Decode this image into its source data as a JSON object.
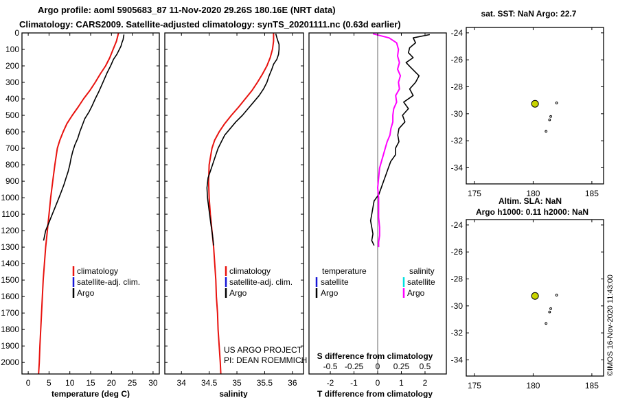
{
  "titles": {
    "line1": "Argo profile: aoml 5905683_87 11-Nov-2020 29.26S 180.16E (NRT data)",
    "line2": "Climatology: CARS2009. Satellite-adjusted climatology: synTS_20201111.nc (0.63d earlier)"
  },
  "credit": "©IMOS 16-Nov-2020 11:43:00",
  "project_note": [
    "US ARGO PROJECT",
    "PI: DEAN ROEMMICH"
  ],
  "colors": {
    "climatology": "#e8120e",
    "satellite_adj_clim": "#1515d6",
    "argo": "#000000",
    "satellite_diff": "#00e0e0",
    "argo_salinity_diff": "#ff00ff",
    "argo_marker": "#c8d400"
  },
  "legends": {
    "temperature": [
      {
        "label": "climatology",
        "color": "#e8120e"
      },
      {
        "label": "satellite-adj. clim.",
        "color": "#1515d6"
      },
      {
        "label": "Argo",
        "color": "#000000"
      }
    ],
    "salinity": [
      {
        "label": "climatology",
        "color": "#e8120e"
      },
      {
        "label": "satellite-adj. clim.",
        "color": "#1515d6"
      },
      {
        "label": "Argo",
        "color": "#000000"
      }
    ],
    "difference": {
      "temperature_header": "temperature",
      "salinity_header": "salinity",
      "temperature_items": [
        {
          "label": "satellite",
          "color": "#1515d6"
        },
        {
          "label": "Argo",
          "color": "#000000"
        }
      ],
      "salinity_items": [
        {
          "label": "satellite",
          "color": "#00e0e0"
        },
        {
          "label": "Argo",
          "color": "#ff00ff"
        }
      ]
    }
  },
  "chart_data": [
    {
      "id": "temperature",
      "type": "line",
      "xlabel": "temperature (deg C)",
      "ylabel": "",
      "xlim": [
        -1.5,
        31.5
      ],
      "ylim": [
        2070,
        0
      ],
      "xticks": [
        0,
        5,
        10,
        15,
        20,
        25,
        30
      ],
      "xtick_labels": [
        "0",
        "5",
        "10",
        "15",
        "20",
        "25",
        "30"
      ],
      "yticks": [
        0,
        100,
        200,
        300,
        400,
        500,
        600,
        700,
        800,
        900,
        1000,
        1100,
        1200,
        1300,
        1400,
        1500,
        1600,
        1700,
        1800,
        1900,
        2000
      ],
      "ytick_labels": [
        "0",
        "100",
        "200",
        "300",
        "400",
        "500",
        "600",
        "700",
        "800",
        "900",
        "1000",
        "1100",
        "1200",
        "1300",
        "1400",
        "1500",
        "1600",
        "1700",
        "1800",
        "1900",
        "2000"
      ],
      "series": [
        {
          "name": "climatology",
          "color": "#e8120e",
          "x": [
            21.7,
            21.2,
            20.4,
            19.6,
            18.6,
            17.3,
            16.1,
            14.8,
            13.3,
            12.0,
            10.6,
            9.3,
            8.4,
            7.6,
            7.0,
            6.4,
            5.9,
            5.4,
            5.0,
            4.6,
            4.2,
            3.9,
            3.6,
            3.4,
            3.2,
            3.0,
            2.8,
            2.65,
            2.5
          ],
          "y": [
            0,
            50,
            100,
            150,
            200,
            250,
            300,
            350,
            400,
            450,
            500,
            550,
            600,
            650,
            700,
            800,
            900,
            1000,
            1100,
            1200,
            1300,
            1400,
            1500,
            1600,
            1700,
            1800,
            1900,
            2000,
            2070
          ]
        },
        {
          "name": "Argo",
          "color": "#000000",
          "x": [
            23.0,
            22.8,
            22.5,
            22.3,
            21.9,
            21.3,
            20.5,
            19.8,
            19.0,
            18.3,
            17.6,
            16.9,
            16.1,
            15.4,
            14.6,
            13.6,
            13.0,
            12.4,
            11.9,
            11.2,
            10.7,
            10.3,
            10.0,
            9.6,
            9.1,
            8.6,
            8.0,
            7.4,
            6.6,
            5.8,
            5.0,
            4.2,
            3.7
          ],
          "y": [
            10,
            40,
            60,
            80,
            100,
            130,
            160,
            200,
            240,
            280,
            320,
            360,
            400,
            440,
            480,
            520,
            560,
            600,
            640,
            680,
            720,
            760,
            800,
            840,
            880,
            920,
            960,
            1000,
            1050,
            1100,
            1150,
            1200,
            1260
          ]
        }
      ]
    },
    {
      "id": "salinity",
      "type": "line",
      "xlabel": "salinity",
      "ylabel": "",
      "xlim": [
        33.7,
        36.2
      ],
      "ylim": [
        2070,
        0
      ],
      "xticks": [
        34,
        34.5,
        35,
        35.5,
        36
      ],
      "xtick_labels": [
        "34",
        "34.5",
        "35",
        "35.5",
        "36"
      ],
      "series": [
        {
          "name": "climatology",
          "color": "#e8120e",
          "x": [
            35.66,
            35.66,
            35.64,
            35.6,
            35.54,
            35.46,
            35.37,
            35.27,
            35.15,
            35.03,
            34.9,
            34.78,
            34.68,
            34.6,
            34.55,
            34.5,
            34.49,
            34.5,
            34.52,
            34.55,
            34.58,
            34.6,
            34.62,
            34.63,
            34.65,
            34.66,
            34.68,
            34.7,
            34.71
          ],
          "y": [
            0,
            50,
            100,
            150,
            200,
            250,
            300,
            350,
            400,
            450,
            500,
            550,
            600,
            650,
            700,
            800,
            900,
            1000,
            1100,
            1200,
            1300,
            1400,
            1500,
            1600,
            1700,
            1800,
            1900,
            2000,
            2070
          ]
        },
        {
          "name": "Argo",
          "color": "#000000",
          "x": [
            35.7,
            35.73,
            35.76,
            35.76,
            35.75,
            35.72,
            35.66,
            35.63,
            35.58,
            35.54,
            35.48,
            35.4,
            35.3,
            35.2,
            35.1,
            34.98,
            34.88,
            34.78,
            34.72,
            34.66,
            34.6,
            34.54,
            34.48,
            34.46,
            34.47,
            34.5,
            34.53,
            34.56,
            34.58
          ],
          "y": [
            5,
            40,
            70,
            100,
            130,
            160,
            190,
            220,
            260,
            300,
            340,
            380,
            420,
            460,
            500,
            540,
            580,
            620,
            660,
            700,
            760,
            820,
            880,
            940,
            1000,
            1080,
            1160,
            1230,
            1290
          ]
        }
      ]
    },
    {
      "id": "difference",
      "type": "line",
      "xlabel": "T difference from climatology",
      "top_label": "S difference from climatology",
      "xlim": [
        -2.9,
        2.9
      ],
      "ylim": [
        2070,
        0
      ],
      "xticks": [
        -2,
        -1,
        0,
        1,
        2
      ],
      "xtick_labels": [
        "-2",
        "-1",
        "0",
        "1",
        "2"
      ],
      "sticks": [
        -0.5,
        -0.25,
        0,
        0.25,
        0.5
      ],
      "stick_labels": [
        "-0.5",
        "-0.25",
        "0",
        "0.25",
        "0.5"
      ],
      "salinity_scale_per_T_unit": 0.25,
      "series": [
        {
          "name": "Argo temperature difference",
          "color": "#000000",
          "x": [
            2.2,
            1.5,
            1.6,
            1.35,
            1.3,
            1.5,
            1.2,
            1.4,
            1.75,
            1.6,
            1.35,
            1.5,
            1.1,
            1.3,
            1.05,
            1.15,
            0.9,
            0.85,
            0.9,
            0.75,
            0.75,
            0.55,
            0.45,
            0.35,
            0.25,
            0.15,
            0.05,
            -0.15,
            -0.2,
            -0.25,
            -0.3,
            -0.25,
            -0.2,
            -0.25,
            -0.15
          ],
          "y": [
            10,
            30,
            60,
            90,
            120,
            150,
            180,
            210,
            260,
            300,
            340,
            380,
            420,
            460,
            500,
            540,
            580,
            620,
            660,
            700,
            740,
            780,
            820,
            860,
            900,
            940,
            980,
            1020,
            1060,
            1100,
            1140,
            1180,
            1220,
            1260,
            1290
          ]
        },
        {
          "name": "Argo salinity difference",
          "color": "#ff00ff",
          "x": [
            -0.05,
            0.12,
            0.2,
            0.22,
            0.21,
            0.23,
            0.21,
            0.24,
            0.22,
            0.23,
            0.19,
            0.2,
            0.17,
            0.16,
            0.16,
            0.14,
            0.13,
            0.1,
            0.08,
            0.06,
            0.04,
            0.02,
            0.01,
            0.0,
            0.01,
            0.01,
            0.01,
            0.02,
            0.02,
            0.01,
            0.01
          ],
          "y": [
            5,
            30,
            60,
            100,
            140,
            180,
            220,
            260,
            300,
            340,
            380,
            420,
            460,
            500,
            540,
            580,
            620,
            660,
            700,
            740,
            780,
            820,
            880,
            940,
            1000,
            1060,
            1120,
            1180,
            1230,
            1270,
            1300
          ]
        }
      ]
    },
    {
      "id": "map_sst",
      "type": "scatter",
      "title": "sat. SST: NaN Argo: 22.7",
      "xlim": [
        174.3,
        186
      ],
      "ylim": [
        -35.2,
        -23.6
      ],
      "xticks": [
        175,
        180,
        185
      ],
      "xtick_labels": [
        "175",
        "180",
        "185"
      ],
      "yticks": [
        -24,
        -26,
        -28,
        -30,
        -32,
        -34
      ],
      "ytick_labels": [
        "-24",
        "-26",
        "-28",
        "-30",
        "-32",
        "-34"
      ],
      "argo_position": {
        "lon": 180.16,
        "lat": -29.26
      },
      "islands": [
        {
          "lon": 182.0,
          "lat": -29.2
        },
        {
          "lon": 181.5,
          "lat": -30.2
        },
        {
          "lon": 181.4,
          "lat": -30.45
        },
        {
          "lon": 181.1,
          "lat": -31.3
        }
      ]
    },
    {
      "id": "map_sla",
      "type": "scatter",
      "title_lines": [
        "Altim. SLA: NaN",
        "Argo h1000: 0.11 h2000: NaN"
      ],
      "xlim": [
        174.3,
        186
      ],
      "ylim": [
        -35.2,
        -23.6
      ],
      "xticks": [
        175,
        180,
        185
      ],
      "xtick_labels": [
        "175",
        "180",
        "185"
      ],
      "yticks": [
        -24,
        -26,
        -28,
        -30,
        -32,
        -34
      ],
      "ytick_labels": [
        "-24",
        "-26",
        "-28",
        "-30",
        "-32",
        "-34"
      ],
      "argo_position": {
        "lon": 180.16,
        "lat": -29.26
      },
      "islands": [
        {
          "lon": 182.0,
          "lat": -29.2
        },
        {
          "lon": 181.5,
          "lat": -30.2
        },
        {
          "lon": 181.4,
          "lat": -30.45
        },
        {
          "lon": 181.1,
          "lat": -31.3
        }
      ]
    }
  ]
}
